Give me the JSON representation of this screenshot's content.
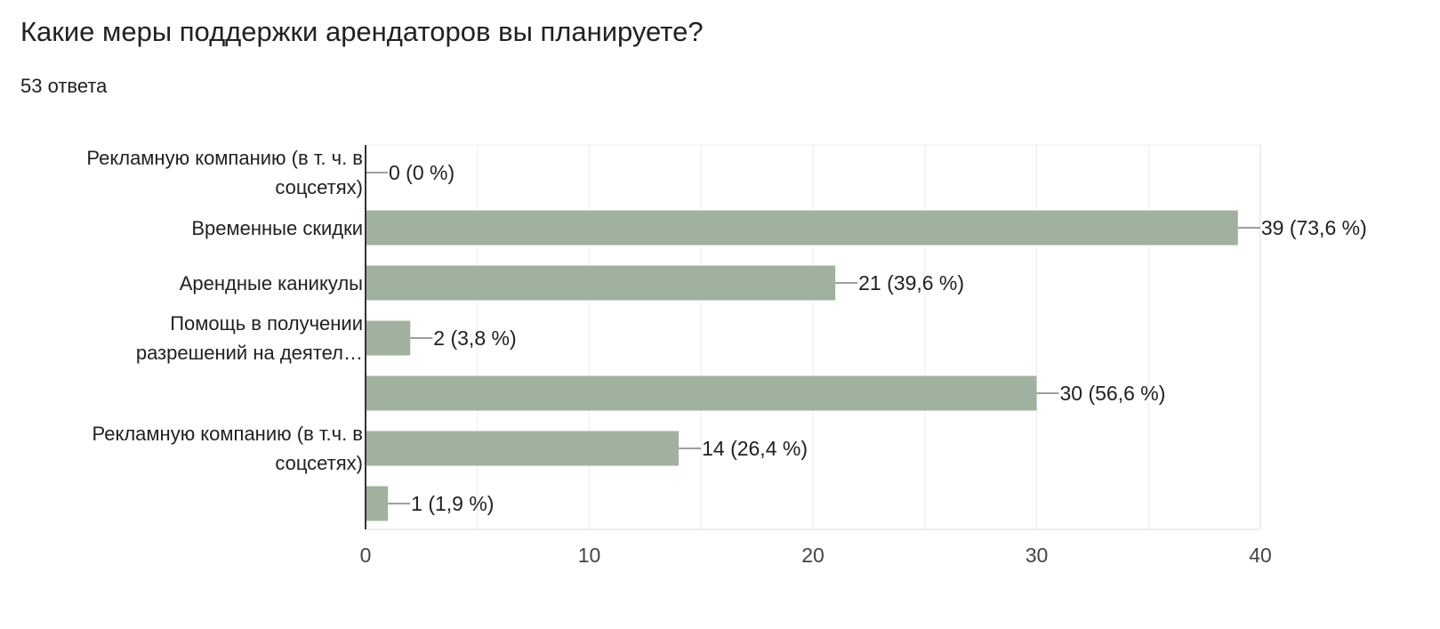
{
  "header": {
    "title": "Какие меры поддержки арендаторов вы планируете?",
    "subtitle": "53 ответа"
  },
  "chart_data": {
    "type": "bar",
    "orientation": "horizontal",
    "title": "Какие меры поддержки арендаторов вы планируете?",
    "subtitle": "53 ответа",
    "categories": [
      [
        "Рекламную компанию (в т. ч. в",
        "соцсетях)"
      ],
      [
        "Временные скидки"
      ],
      [
        "Арендные каникулы"
      ],
      [
        "Помощь в получении",
        "разрешений на деятел…"
      ],
      [],
      [
        "Рекламную компанию (в т.ч. в",
        "соцсетях)"
      ],
      []
    ],
    "values": [
      0,
      39,
      21,
      2,
      30,
      14,
      1
    ],
    "data_labels": [
      "0 (0 %)",
      "39 (73,6 %)",
      "21 (39,6 %)",
      "2 (3,8 %)",
      "30 (56,6 %)",
      "14 (26,4 %)",
      "1 (1,9 %)"
    ],
    "xlim": [
      0,
      40
    ],
    "x_ticks": [
      0,
      10,
      20,
      30,
      40
    ],
    "grid": true,
    "colors": {
      "bar": "#a0b29f",
      "grid": "#eeeeee",
      "axis": "#333333",
      "leader": "#9e9e9e",
      "text": "#202124",
      "tick_text": "#444444"
    }
  }
}
